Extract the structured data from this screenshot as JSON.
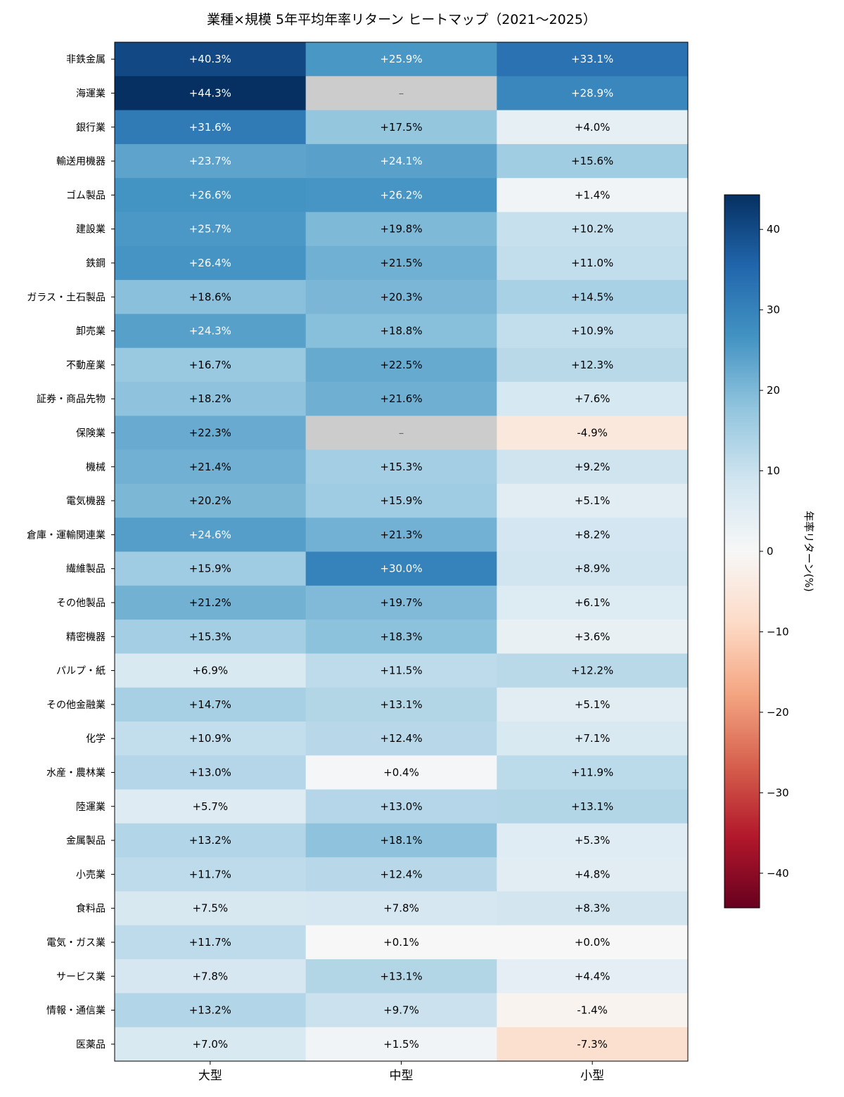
{
  "chart_data": {
    "type": "heatmap",
    "title": "業種×規模 5年平均年率リターン ヒートマップ（2021〜2025）",
    "xlabel": "",
    "ylabel": "",
    "columns": [
      "大型",
      "中型",
      "小型"
    ],
    "rows": [
      "非鉄金属",
      "海運業",
      "銀行業",
      "輸送用機器",
      "ゴム製品",
      "建設業",
      "鉄鋼",
      "ガラス・土石製品",
      "卸売業",
      "不動産業",
      "証券・商品先物",
      "保険業",
      "機械",
      "電気機器",
      "倉庫・運輸関連業",
      "繊維製品",
      "その他製品",
      "精密機器",
      "パルプ・紙",
      "その他金融業",
      "化学",
      "水産・農林業",
      "陸運業",
      "金属製品",
      "小売業",
      "食料品",
      "電気・ガス業",
      "サービス業",
      "情報・通信業",
      "医薬品"
    ],
    "values": [
      [
        40.3,
        25.9,
        33.1
      ],
      [
        44.3,
        null,
        28.9
      ],
      [
        31.6,
        17.5,
        4.0
      ],
      [
        23.7,
        24.1,
        15.6
      ],
      [
        26.6,
        26.2,
        1.4
      ],
      [
        25.7,
        19.8,
        10.2
      ],
      [
        26.4,
        21.5,
        11.0
      ],
      [
        18.6,
        20.3,
        14.5
      ],
      [
        24.3,
        18.8,
        10.9
      ],
      [
        16.7,
        22.5,
        12.3
      ],
      [
        18.2,
        21.6,
        7.6
      ],
      [
        22.3,
        null,
        -4.9
      ],
      [
        21.4,
        15.3,
        9.2
      ],
      [
        20.2,
        15.9,
        5.1
      ],
      [
        24.6,
        21.3,
        8.2
      ],
      [
        15.9,
        30.0,
        8.9
      ],
      [
        21.2,
        19.7,
        6.1
      ],
      [
        15.3,
        18.3,
        3.6
      ],
      [
        6.9,
        11.5,
        12.2
      ],
      [
        14.7,
        13.1,
        5.1
      ],
      [
        10.9,
        12.4,
        7.1
      ],
      [
        13.0,
        0.4,
        11.9
      ],
      [
        5.7,
        13.0,
        13.1
      ],
      [
        13.2,
        18.1,
        5.3
      ],
      [
        11.7,
        12.4,
        4.8
      ],
      [
        7.5,
        7.8,
        8.3
      ],
      [
        11.7,
        0.1,
        0.0
      ],
      [
        7.8,
        13.1,
        4.4
      ],
      [
        13.2,
        9.7,
        -1.4
      ],
      [
        7.0,
        1.5,
        -7.3
      ]
    ],
    "cell_labels": [
      [
        "+40.3%",
        "+25.9%",
        "+33.1%"
      ],
      [
        "+44.3%",
        "–",
        "+28.9%"
      ],
      [
        "+31.6%",
        "+17.5%",
        "+4.0%"
      ],
      [
        "+23.7%",
        "+24.1%",
        "+15.6%"
      ],
      [
        "+26.6%",
        "+26.2%",
        "+1.4%"
      ],
      [
        "+25.7%",
        "+19.8%",
        "+10.2%"
      ],
      [
        "+26.4%",
        "+21.5%",
        "+11.0%"
      ],
      [
        "+18.6%",
        "+20.3%",
        "+14.5%"
      ],
      [
        "+24.3%",
        "+18.8%",
        "+10.9%"
      ],
      [
        "+16.7%",
        "+22.5%",
        "+12.3%"
      ],
      [
        "+18.2%",
        "+21.6%",
        "+7.6%"
      ],
      [
        "+22.3%",
        "–",
        "-4.9%"
      ],
      [
        "+21.4%",
        "+15.3%",
        "+9.2%"
      ],
      [
        "+20.2%",
        "+15.9%",
        "+5.1%"
      ],
      [
        "+24.6%",
        "+21.3%",
        "+8.2%"
      ],
      [
        "+15.9%",
        "+30.0%",
        "+8.9%"
      ],
      [
        "+21.2%",
        "+19.7%",
        "+6.1%"
      ],
      [
        "+15.3%",
        "+18.3%",
        "+3.6%"
      ],
      [
        "+6.9%",
        "+11.5%",
        "+12.2%"
      ],
      [
        "+14.7%",
        "+13.1%",
        "+5.1%"
      ],
      [
        "+10.9%",
        "+12.4%",
        "+7.1%"
      ],
      [
        "+13.0%",
        "+0.4%",
        "+11.9%"
      ],
      [
        "+5.7%",
        "+13.0%",
        "+13.1%"
      ],
      [
        "+13.2%",
        "+18.1%",
        "+5.3%"
      ],
      [
        "+11.7%",
        "+12.4%",
        "+4.8%"
      ],
      [
        "+7.5%",
        "+7.8%",
        "+8.3%"
      ],
      [
        "+11.7%",
        "+0.1%",
        "+0.0%"
      ],
      [
        "+7.8%",
        "+13.1%",
        "+4.4%"
      ],
      [
        "+13.2%",
        "+9.7%",
        "-1.4%"
      ],
      [
        "+7.0%",
        "+1.5%",
        "-7.3%"
      ]
    ],
    "missing_color": "#cccccc",
    "colormap": "RdBu",
    "vmin": -44.3,
    "vmax": 44.3,
    "colorbar": {
      "label": "年率リターン(%)",
      "ticks": [
        -40,
        -30,
        -20,
        -10,
        0,
        10,
        20,
        30,
        40
      ],
      "tick_labels": [
        "−40",
        "−30",
        "−20",
        "−10",
        "0",
        "10",
        "20",
        "30",
        "40"
      ]
    },
    "grid": false,
    "legend": "colorbar-right"
  }
}
